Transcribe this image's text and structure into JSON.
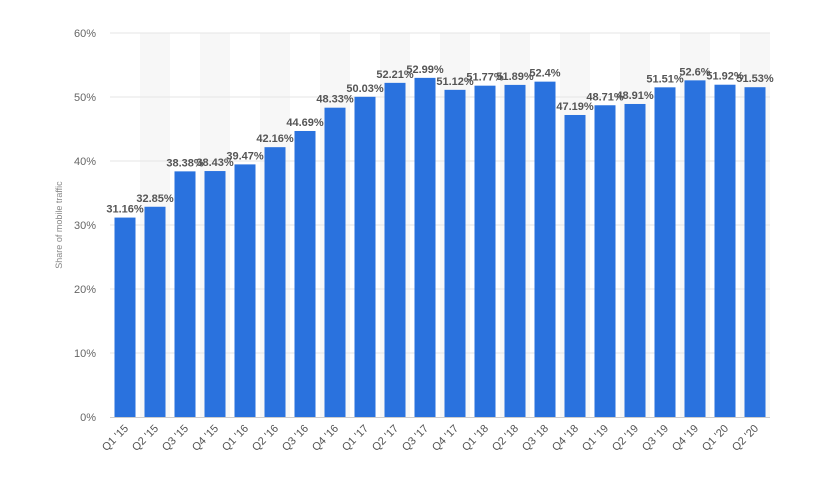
{
  "chart_data": {
    "type": "bar",
    "title": "",
    "xlabel": "",
    "ylabel": "Share of mobile traffic",
    "ylim": [
      0,
      60
    ],
    "yticks": [
      0,
      10,
      20,
      30,
      40,
      50,
      60
    ],
    "ytick_labels": [
      "0%",
      "10%",
      "20%",
      "30%",
      "40%",
      "50%",
      "60%"
    ],
    "grid": true,
    "legend": "none",
    "bar_color": "#2A72DE",
    "categories": [
      "Q1 '15",
      "Q2 '15",
      "Q3 '15",
      "Q4 '15",
      "Q1 '16",
      "Q2 '16",
      "Q3 '16",
      "Q4 '16",
      "Q1 '17",
      "Q2 '17",
      "Q3 '17",
      "Q4 '17",
      "Q1 '18",
      "Q2 '18",
      "Q3 '18",
      "Q4 '18",
      "Q1 '19",
      "Q2 '19",
      "Q3 '19",
      "Q4 '19",
      "Q1 '20",
      "Q2 '20"
    ],
    "values": [
      31.16,
      32.85,
      38.38,
      38.43,
      39.47,
      42.16,
      44.69,
      48.33,
      50.03,
      52.21,
      52.99,
      51.12,
      51.77,
      51.89,
      52.4,
      47.19,
      48.71,
      48.91,
      51.51,
      52.6,
      51.92,
      51.53
    ],
    "value_labels": [
      "31.16%",
      "32.85%",
      "38.38%",
      "38.43%",
      "39.47%",
      "42.16%",
      "44.69%",
      "48.33%",
      "50.03%",
      "52.21%",
      "52.99%",
      "51.12%",
      "51.77%",
      "51.89%",
      "52.4%",
      "47.19%",
      "48.71%",
      "48.91%",
      "51.51%",
      "52.6%",
      "51.92%",
      "51.53%"
    ]
  }
}
